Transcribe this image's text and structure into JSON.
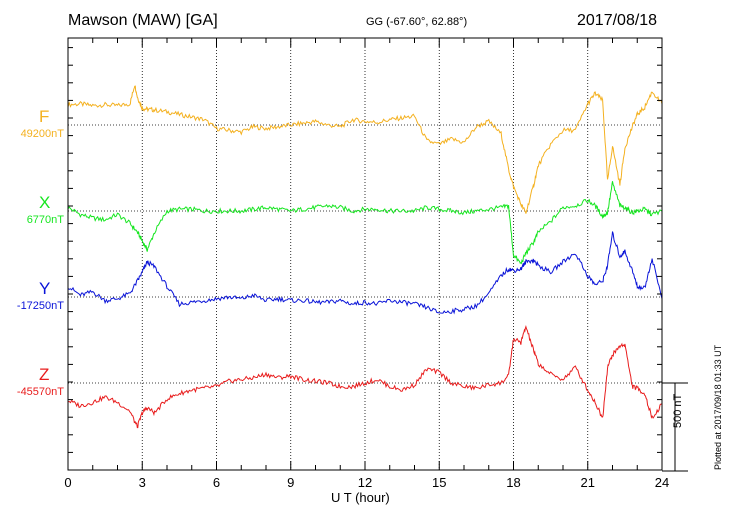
{
  "header": {
    "station": "Mawson (MAW)  [GA]",
    "coords": "GG (-67.60°,  62.88°)",
    "date": "2017/08/18"
  },
  "footer": {
    "xlabel": "U T (hour)",
    "scale": "500 nT",
    "plotted": "Plotted at 2017/09/18 01:33 UT"
  },
  "chart_data": {
    "type": "line",
    "xlabel": "U T (hour)",
    "xlim": [
      0,
      24
    ],
    "xticks": [
      "0",
      "3",
      "6",
      "9",
      "12",
      "15",
      "18",
      "21",
      "24"
    ],
    "grid": true,
    "scale_bar_nT": 500,
    "series": [
      {
        "name": "F",
        "baseline_label": "49200nT",
        "color": "#f4b120",
        "baseline_nT": 49200,
        "x": [
          0,
          0.5,
          1,
          1.5,
          2,
          2.5,
          2.7,
          2.8,
          3,
          3.2,
          3.5,
          4,
          4.5,
          5,
          5.5,
          6,
          6.5,
          7,
          7.5,
          8,
          8.5,
          9,
          9.5,
          10,
          10.5,
          11,
          11.5,
          12,
          12.5,
          13,
          13.5,
          14,
          14.5,
          15,
          15.5,
          16,
          16.5,
          17,
          17.5,
          17.8,
          18,
          18.3,
          18.5,
          18.8,
          19,
          19.5,
          20,
          20.5,
          21,
          21.3,
          21.6,
          21.8,
          22,
          22.3,
          22.5,
          22.8,
          23,
          23.3,
          23.6,
          24
        ],
        "values": [
          115,
          120,
          110,
          115,
          110,
          120,
          230,
          160,
          95,
          90,
          85,
          75,
          60,
          45,
          30,
          -20,
          -30,
          -40,
          -10,
          -20,
          -10,
          0,
          10,
          20,
          0,
          -10,
          30,
          20,
          15,
          30,
          40,
          50,
          -90,
          -110,
          -80,
          -100,
          -10,
          20,
          -50,
          -250,
          -350,
          -450,
          -500,
          -350,
          -230,
          -110,
          -30,
          -30,
          120,
          180,
          140,
          -320,
          -120,
          -340,
          -130,
          -10,
          60,
          100,
          190,
          120
        ]
      },
      {
        "name": "X",
        "baseline_label": "6770nT",
        "color": "#16e620",
        "baseline_nT": 6770,
        "x": [
          0,
          0.5,
          1,
          1.5,
          2,
          2.5,
          2.8,
          3,
          3.2,
          3.5,
          4,
          4.5,
          5,
          5.5,
          6,
          6.5,
          7,
          7.5,
          8,
          8.5,
          9,
          9.5,
          10,
          10.5,
          11,
          11.5,
          12,
          12.5,
          13,
          13.5,
          14,
          14.5,
          15,
          15.5,
          16,
          16.5,
          17,
          17.5,
          17.8,
          18,
          18.3,
          18.5,
          18.8,
          19,
          19.5,
          20,
          20.5,
          21,
          21.3,
          21.6,
          21.8,
          22,
          22.3,
          22.5,
          22.8,
          23,
          23.3,
          23.6,
          24
        ],
        "values": [
          20,
          -20,
          -40,
          -50,
          -20,
          -70,
          -120,
          -170,
          -220,
          -120,
          0,
          10,
          10,
          0,
          0,
          0,
          0,
          10,
          20,
          10,
          0,
          10,
          20,
          30,
          20,
          0,
          10,
          10,
          0,
          0,
          0,
          20,
          10,
          0,
          -10,
          0,
          10,
          20,
          30,
          -250,
          -300,
          -240,
          -180,
          -120,
          -60,
          20,
          30,
          60,
          30,
          -30,
          -10,
          160,
          30,
          20,
          -10,
          0,
          10,
          -20,
          0
        ]
      },
      {
        "name": "Y",
        "baseline_label": "-17250nT",
        "color": "#0a14d8",
        "baseline_nT": -17250,
        "x": [
          0,
          0.5,
          1,
          1.5,
          2,
          2.5,
          2.8,
          3,
          3.2,
          3.5,
          4,
          4.5,
          5,
          5.5,
          6,
          6.5,
          7,
          7.5,
          8,
          8.5,
          9,
          9.5,
          10,
          10.5,
          11,
          11.5,
          12,
          12.5,
          13,
          13.5,
          14,
          14.5,
          15,
          15.5,
          16,
          16.5,
          17,
          17.5,
          17.8,
          18,
          18.3,
          18.5,
          18.8,
          19,
          19.5,
          20,
          20.5,
          21,
          21.3,
          21.6,
          21.8,
          22,
          22.3,
          22.5,
          22.8,
          23,
          23.3,
          23.6,
          24
        ],
        "values": [
          60,
          10,
          30,
          -20,
          -10,
          20,
          90,
          140,
          200,
          170,
          60,
          -40,
          -30,
          -20,
          -10,
          0,
          -10,
          10,
          -20,
          -10,
          -20,
          -20,
          -30,
          -30,
          -20,
          -40,
          -30,
          -40,
          -20,
          -30,
          -40,
          -60,
          -90,
          -80,
          -70,
          -50,
          20,
          120,
          160,
          150,
          160,
          200,
          210,
          180,
          140,
          200,
          250,
          120,
          70,
          90,
          180,
          360,
          230,
          260,
          150,
          60,
          50,
          220,
          -10
        ]
      },
      {
        "name": "Z",
        "baseline_label": "-45570nT",
        "color": "#e81c1c",
        "baseline_nT": -45570,
        "x": [
          0,
          0.5,
          1,
          1.5,
          2,
          2.5,
          2.8,
          3,
          3.2,
          3.5,
          4,
          4.5,
          5,
          5.5,
          6,
          6.5,
          7,
          7.5,
          8,
          8.5,
          9,
          9.5,
          10,
          10.5,
          11,
          11.5,
          12,
          12.5,
          13,
          13.5,
          14,
          14.5,
          15,
          15.5,
          16,
          16.5,
          17,
          17.5,
          17.8,
          18,
          18.3,
          18.5,
          18.8,
          19,
          19.5,
          20,
          20.5,
          21,
          21.3,
          21.6,
          21.8,
          22,
          22.3,
          22.5,
          22.8,
          23,
          23.3,
          23.6,
          24
        ],
        "values": [
          -100,
          -130,
          -110,
          -80,
          -110,
          -160,
          -250,
          -170,
          -140,
          -170,
          -90,
          -60,
          -40,
          -30,
          -20,
          10,
          20,
          30,
          50,
          30,
          40,
          20,
          10,
          0,
          -20,
          -20,
          0,
          20,
          -20,
          -40,
          -10,
          80,
          60,
          0,
          -20,
          -30,
          -10,
          0,
          40,
          250,
          230,
          320,
          190,
          110,
          50,
          20,
          90,
          -40,
          -110,
          -200,
          90,
          160,
          210,
          220,
          -20,
          -30,
          -60,
          -200,
          -120
        ]
      }
    ]
  }
}
